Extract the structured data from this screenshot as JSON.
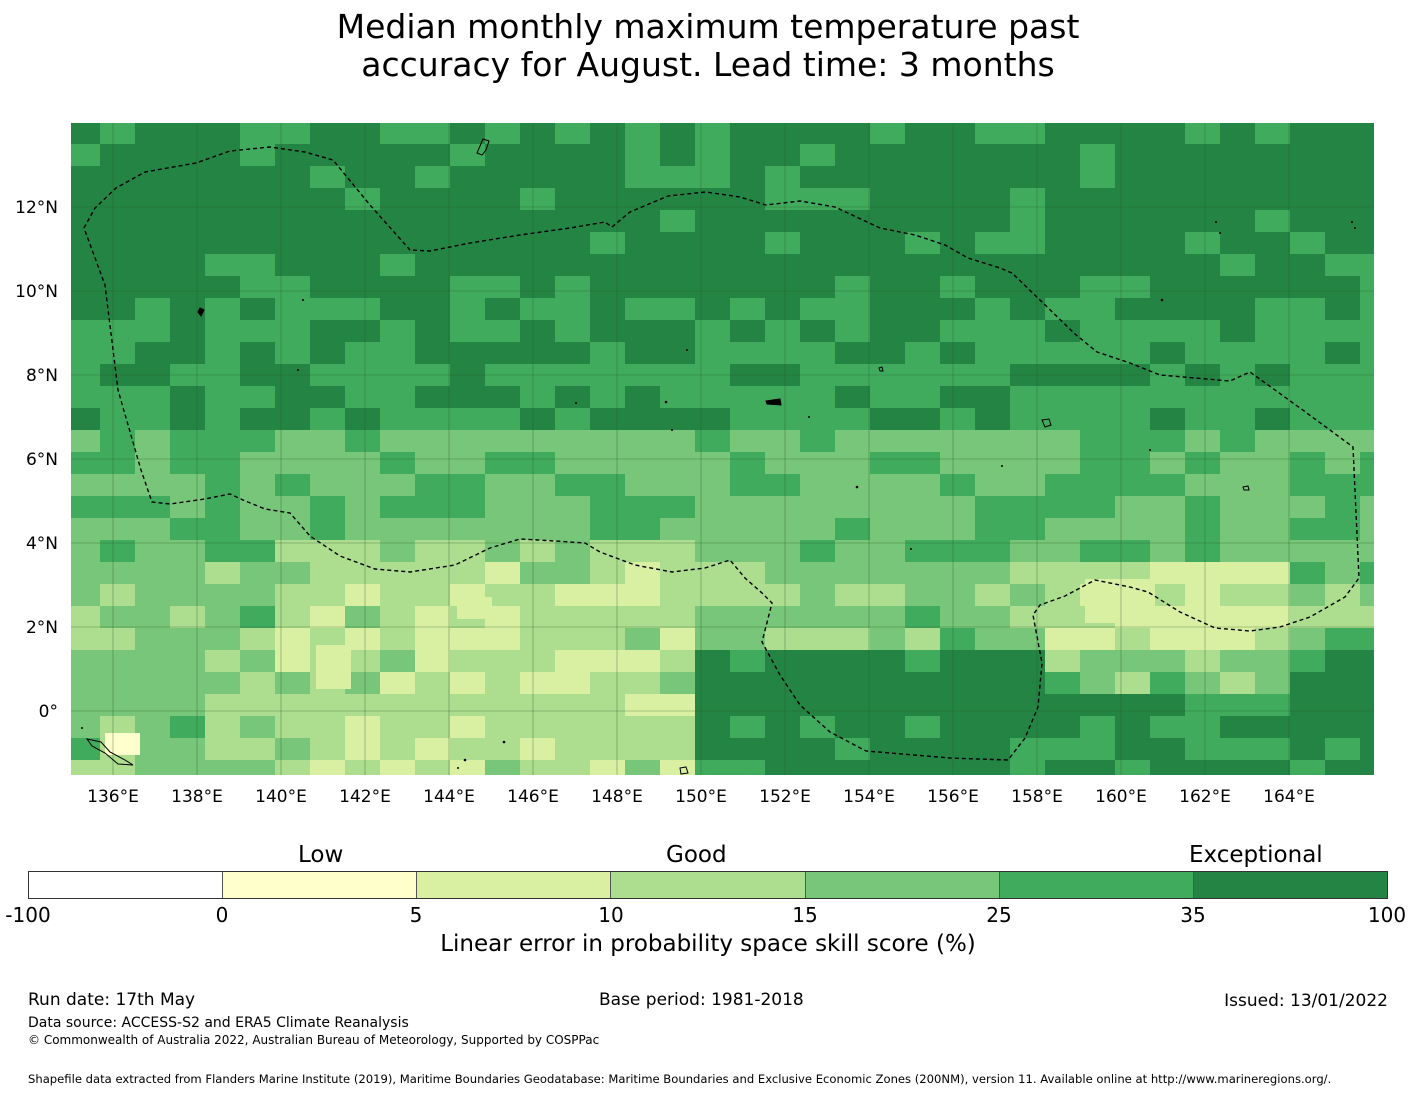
{
  "title": {
    "line1": "Median monthly maximum temperature past",
    "line2": "accuracy for August. Lead time: 3 months"
  },
  "map": {
    "x_ticks": [
      "136°E",
      "138°E",
      "140°E",
      "142°E",
      "144°E",
      "146°E",
      "148°E",
      "150°E",
      "152°E",
      "154°E",
      "156°E",
      "158°E",
      "160°E",
      "162°E",
      "164°E"
    ],
    "y_ticks": [
      "12°N",
      "10°N",
      "8°N",
      "6°N",
      "4°N",
      "2°N",
      "0°"
    ],
    "grid": "on",
    "boundary_style": "dashed"
  },
  "colorbar": {
    "categories": [
      "Low",
      "Good",
      "Exceptional"
    ],
    "ticks": [
      "-100",
      "0",
      "5",
      "10",
      "15",
      "25",
      "35",
      "100"
    ],
    "colors": [
      "#ffffff",
      "#ffffcc",
      "#d9f0a3",
      "#addd8e",
      "#78c679",
      "#41ab5d",
      "#238443"
    ],
    "label": "Linear error in probability space skill score (%)"
  },
  "footer": {
    "run_date": "Run date: 17th May",
    "base_period": "Base period: 1981-2018",
    "issued": "Issued: 13/01/2022",
    "data_source": "Data source: ACCESS-S2 and ERA5 Climate Reanalysis",
    "copyright": "© Commonwealth of Australia 2022, Australian Bureau of Meteorology, Supported by COSPPac",
    "shapefile": "Shapefile data extracted from Flanders Marine Institute (2019), Maritime Boundaries Geodatabase: Maritime Boundaries and Exclusive Economic Zones (200NM), version 11. Available online at http://www.marineregions.org/."
  }
}
